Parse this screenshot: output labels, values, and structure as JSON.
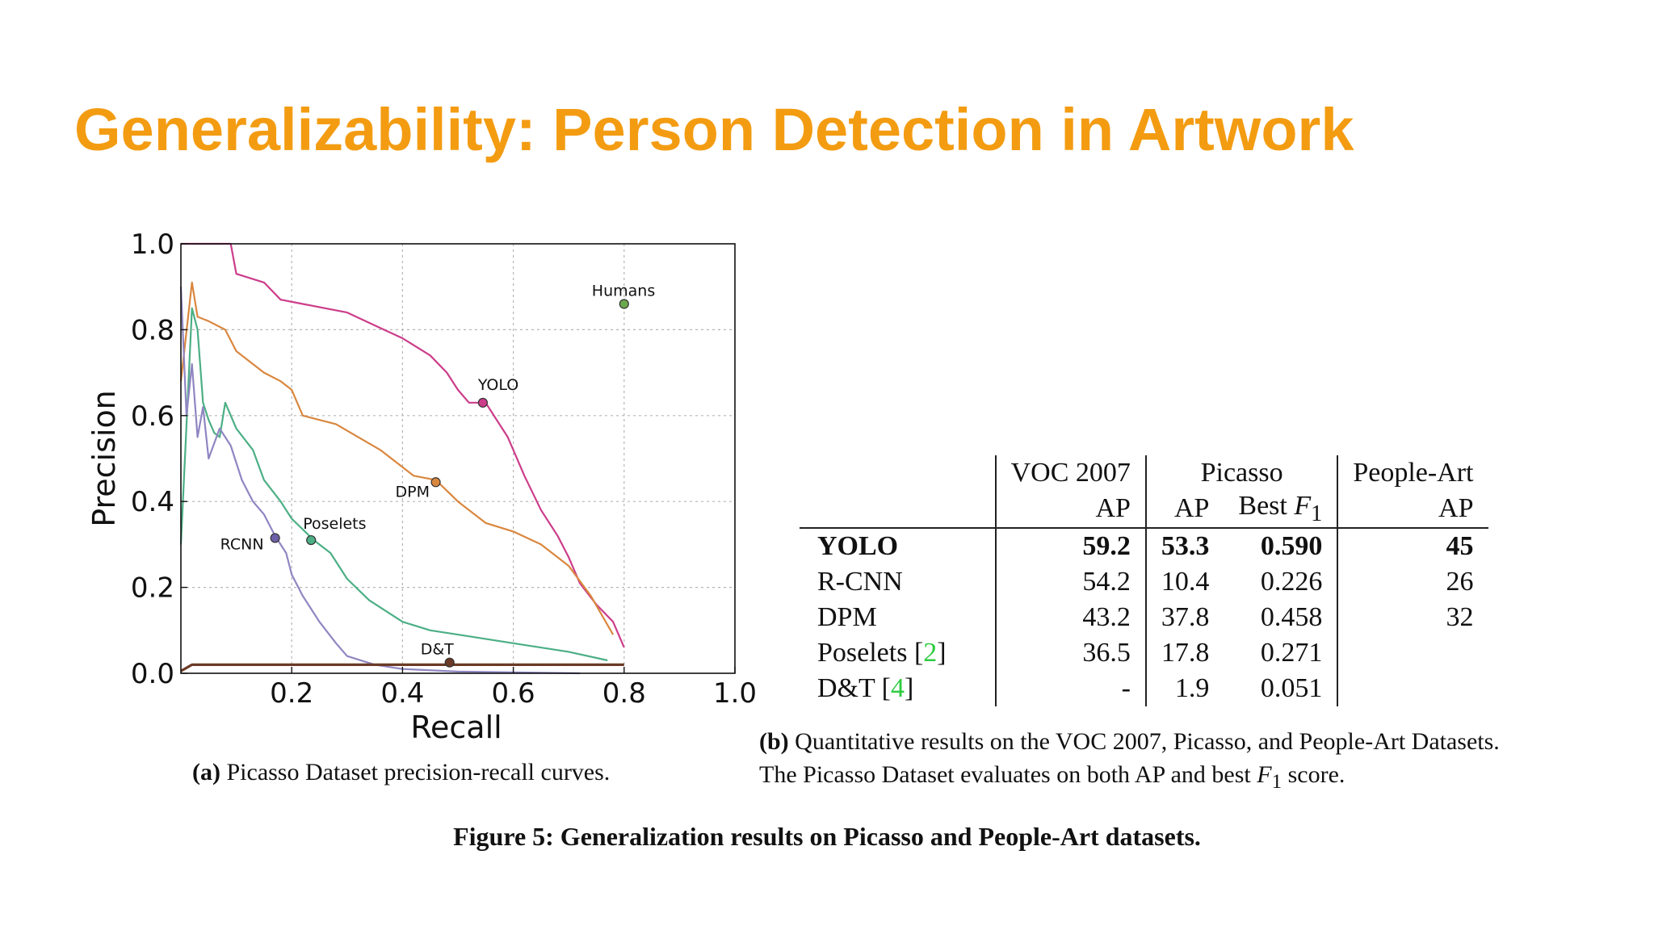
{
  "slide": {
    "title": "Generalizability: Person Detection in Artwork"
  },
  "chart_data": {
    "type": "line",
    "xlabel": "Recall",
    "ylabel": "Precision",
    "xlim": [
      0.0,
      1.0
    ],
    "ylim": [
      0.0,
      1.0
    ],
    "xticks": [
      "0.2",
      "0.4",
      "0.6",
      "0.8",
      "1.0"
    ],
    "yticks": [
      "0.0",
      "0.2",
      "0.4",
      "0.6",
      "0.8",
      "1.0"
    ],
    "grid": true,
    "colors": {
      "yolo": "#cc3d8a",
      "dpm": "#d9873f",
      "poselets": "#4caf85",
      "rcnn": "#8f86c2",
      "dt": "#6b3a26",
      "humans": "#6aa84f"
    },
    "series": [
      {
        "name": "YOLO",
        "color": "#cc3d8a",
        "x": [
          0.0,
          0.09,
          0.1,
          0.15,
          0.18,
          0.22,
          0.3,
          0.35,
          0.4,
          0.45,
          0.48,
          0.5,
          0.52,
          0.55,
          0.57,
          0.59,
          0.62,
          0.65,
          0.68,
          0.7,
          0.72,
          0.75,
          0.78,
          0.8
        ],
        "y": [
          1.0,
          1.0,
          0.93,
          0.91,
          0.87,
          0.86,
          0.84,
          0.81,
          0.78,
          0.74,
          0.7,
          0.66,
          0.63,
          0.63,
          0.59,
          0.55,
          0.46,
          0.38,
          0.32,
          0.27,
          0.21,
          0.16,
          0.12,
          0.06
        ]
      },
      {
        "name": "DPM",
        "color": "#d9873f",
        "x": [
          0.0,
          0.02,
          0.03,
          0.05,
          0.08,
          0.1,
          0.12,
          0.15,
          0.18,
          0.2,
          0.22,
          0.28,
          0.32,
          0.36,
          0.4,
          0.42,
          0.46,
          0.5,
          0.55,
          0.6,
          0.65,
          0.7,
          0.74,
          0.78
        ],
        "y": [
          0.68,
          0.91,
          0.83,
          0.82,
          0.8,
          0.75,
          0.73,
          0.7,
          0.68,
          0.66,
          0.6,
          0.58,
          0.55,
          0.52,
          0.48,
          0.46,
          0.45,
          0.4,
          0.35,
          0.33,
          0.3,
          0.25,
          0.18,
          0.09
        ]
      },
      {
        "name": "Poselets",
        "color": "#4caf85",
        "x": [
          0.0,
          0.02,
          0.03,
          0.04,
          0.05,
          0.06,
          0.07,
          0.08,
          0.1,
          0.13,
          0.15,
          0.18,
          0.2,
          0.24,
          0.27,
          0.3,
          0.34,
          0.4,
          0.45,
          0.5,
          0.6,
          0.7,
          0.77
        ],
        "y": [
          0.3,
          0.85,
          0.8,
          0.63,
          0.59,
          0.56,
          0.55,
          0.63,
          0.57,
          0.52,
          0.45,
          0.4,
          0.36,
          0.31,
          0.28,
          0.22,
          0.17,
          0.12,
          0.1,
          0.09,
          0.07,
          0.05,
          0.03
        ]
      },
      {
        "name": "RCNN",
        "color": "#8f86c2",
        "x": [
          0.0,
          0.01,
          0.02,
          0.03,
          0.04,
          0.05,
          0.07,
          0.09,
          0.11,
          0.13,
          0.15,
          0.17,
          0.19,
          0.2,
          0.22,
          0.25,
          0.28,
          0.3,
          0.35,
          0.4,
          0.5,
          0.6,
          0.72
        ],
        "y": [
          0.9,
          0.6,
          0.72,
          0.55,
          0.62,
          0.5,
          0.57,
          0.53,
          0.45,
          0.4,
          0.37,
          0.32,
          0.28,
          0.23,
          0.18,
          0.12,
          0.07,
          0.04,
          0.02,
          0.01,
          0.004,
          0.002,
          0.0
        ]
      },
      {
        "name": "D&T",
        "color": "#6b3a26",
        "x": [
          0.0,
          0.02,
          0.05,
          0.1,
          0.2,
          0.3,
          0.4,
          0.49,
          0.6,
          0.7,
          0.8
        ],
        "y": [
          0.005,
          0.02,
          0.02,
          0.02,
          0.02,
          0.02,
          0.02,
          0.02,
          0.02,
          0.02,
          0.02
        ]
      }
    ],
    "markers": [
      {
        "label": "Humans",
        "x": 0.8,
        "y": 0.86,
        "color": "#6aa84f"
      },
      {
        "label": "YOLO",
        "x": 0.545,
        "y": 0.63,
        "color": "#cc3d8a"
      },
      {
        "label": "DPM",
        "x": 0.46,
        "y": 0.445,
        "color": "#d9873f"
      },
      {
        "label": "Poselets",
        "x": 0.235,
        "y": 0.31,
        "color": "#4caf85"
      },
      {
        "label": "RCNN",
        "x": 0.17,
        "y": 0.315,
        "color": "#6c5fa8"
      },
      {
        "label": "D&T",
        "x": 0.485,
        "y": 0.025,
        "color": "#6b3a26"
      }
    ]
  },
  "captions": {
    "a_prefix": "(a)",
    "a_text": " Picasso Dataset precision-recall curves.",
    "b_prefix": "(b)",
    "b_line1": " Quantitative results on the VOC 2007, Picasso, and People-Art Datasets.",
    "b_line2a": "The Picasso Dataset evaluates on both AP and best ",
    "b_line2_f": "F",
    "b_line2_sub": "1",
    "b_line2b": " score.",
    "figure_prefix": "Figure 5:",
    "figure_text": " Generalization results on Picasso and People-Art datasets."
  },
  "table": {
    "group_headers": [
      "VOC 2007",
      "Picasso",
      "People-Art"
    ],
    "sub_headers": [
      "AP",
      "AP",
      "Best ",
      "AP"
    ],
    "f_symbol": "F",
    "f_sub": "1",
    "rows": [
      {
        "name": "YOLO",
        "ref": "",
        "voc": "59.2",
        "pap": "53.3",
        "pf1": "0.590",
        "art": "45"
      },
      {
        "name": "R-CNN",
        "ref": "",
        "voc": "54.2",
        "pap": "10.4",
        "pf1": "0.226",
        "art": "26"
      },
      {
        "name": "DPM",
        "ref": "",
        "voc": "43.2",
        "pap": "37.8",
        "pf1": "0.458",
        "art": "32"
      },
      {
        "name": "Poselets ",
        "ref": "2",
        "voc": "36.5",
        "pap": "17.8",
        "pf1": "0.271",
        "art": ""
      },
      {
        "name": "D&T ",
        "ref": "4",
        "voc": "-",
        "pap": "1.9",
        "pf1": "0.051",
        "art": ""
      }
    ]
  }
}
